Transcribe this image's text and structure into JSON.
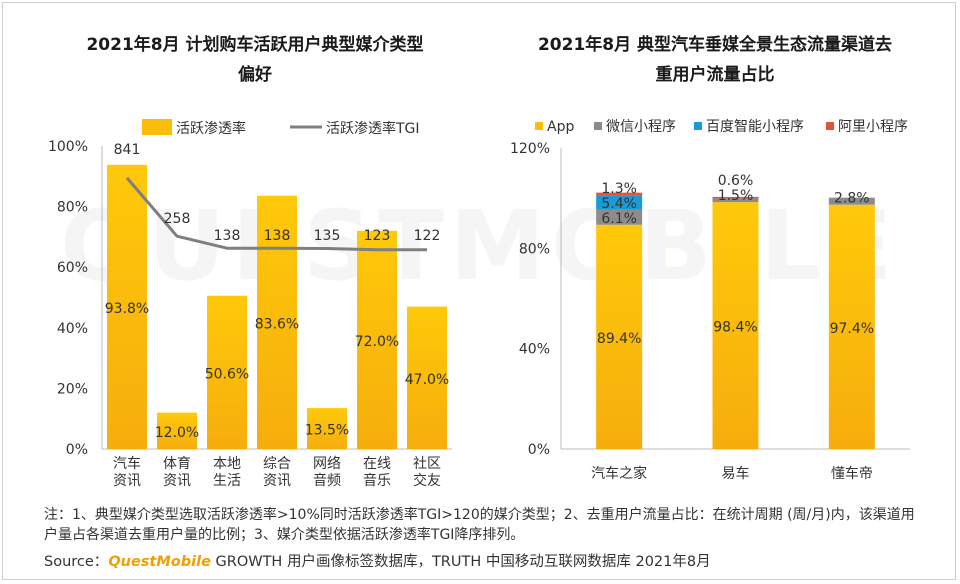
{
  "watermark": "QUESTMOBILE",
  "note": "注：1、典型媒介类型选取活跃渗透率>10%同时活跃渗透率TGI>120的媒介类型；2、去重用户流量占比：在统计周期 (周/月)内，该渠道用户量占各渠道去重用户量的比例；3、媒介类型依据活跃渗透率TGI降序排列。",
  "source": {
    "prefix": "Source：",
    "brand": "QuestMobile",
    "rest": "GROWTH 用户画像标签数据库，TRUTH 中国移动互联网数据库 2021年8月"
  },
  "colors": {
    "yellow": "#f9bd0a",
    "gray": "#8c8c8c",
    "blue": "#1a9ad6",
    "red": "#e2543a",
    "line": "#7f7f7f"
  },
  "chart_data": [
    {
      "type": "bar",
      "title": "2021年8月 计划购车活跃用户典型媒介类型偏好",
      "title_lines": [
        "2021年8月 计划购车活跃用户典型媒介类型",
        "偏好"
      ],
      "categories": [
        [
          "汽车",
          "资讯"
        ],
        [
          "体育",
          "资讯"
        ],
        [
          "本地",
          "生活"
        ],
        [
          "综合",
          "资讯"
        ],
        [
          "网络",
          "音频"
        ],
        [
          "在线",
          "音乐"
        ],
        [
          "社区",
          "交友"
        ]
      ],
      "series": [
        {
          "name": "活跃渗透率",
          "values": [
            93.8,
            12.0,
            50.6,
            83.6,
            13.5,
            72.0,
            47.0
          ],
          "labels": [
            "93.8%",
            "12.0%",
            "50.6%",
            "83.6%",
            "13.5%",
            "72.0%",
            "47.0%"
          ]
        },
        {
          "name": "活跃渗透率TGI",
          "type": "line",
          "values": [
            841,
            258,
            138,
            138,
            135,
            123,
            122
          ],
          "labels": [
            "841",
            "258",
            "138",
            "138",
            "135",
            "123",
            "122"
          ]
        }
      ],
      "yticks": [
        "0%",
        "20%",
        "40%",
        "60%",
        "80%",
        "100%"
      ],
      "ylim": [
        0,
        100
      ]
    },
    {
      "type": "bar",
      "stacked": true,
      "title": "2021年8月 典型汽车垂媒全景生态流量渠道去重用户流量占比",
      "title_lines": [
        "2021年8月 典型汽车垂媒全景生态流量渠道去",
        "重用户流量占比"
      ],
      "categories": [
        "汽车之家",
        "易车",
        "懂车帝"
      ],
      "series": [
        {
          "name": "App",
          "values": [
            89.4,
            98.4,
            97.4
          ],
          "labels": [
            "89.4%",
            "98.4%",
            "97.4%"
          ]
        },
        {
          "name": "微信小程序",
          "values": [
            6.1,
            1.5,
            2.8
          ],
          "labels": [
            "6.1%",
            "1.5%",
            "2.8%"
          ]
        },
        {
          "name": "百度智能小程序",
          "values": [
            5.4,
            0.0,
            0.0
          ],
          "labels": [
            "5.4%",
            "",
            ""
          ]
        },
        {
          "name": "阿里小程序",
          "values": [
            1.3,
            0.6,
            0.0
          ],
          "labels": [
            "1.3%",
            "0.6%",
            ""
          ]
        }
      ],
      "yticks": [
        "0%",
        "40%",
        "80%",
        "120%"
      ],
      "ylim": [
        0,
        120
      ]
    }
  ]
}
